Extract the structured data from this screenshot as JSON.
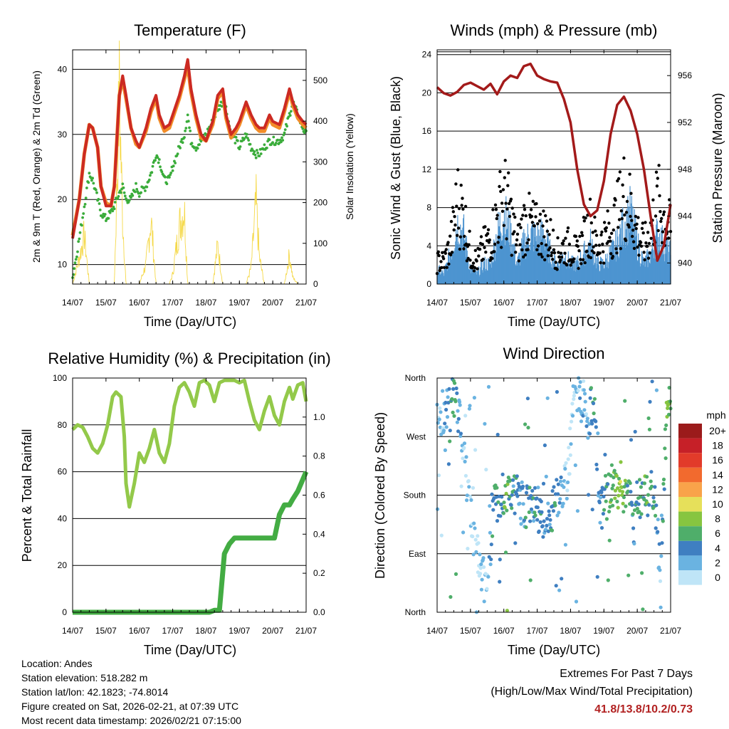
{
  "chart_data": [
    {
      "type": "line",
      "title": "Temperature (F)",
      "xlabel": "Time (Day/UTC)",
      "ylabel": "2m & 9m T (Red, Orange) & 2m Td (Green)",
      "y2label": "Solar Insolation (Yellow)",
      "categories": [
        "14/07",
        "15/07",
        "16/07",
        "17/07",
        "18/07",
        "19/07",
        "20/07",
        "21/07"
      ],
      "ylim": [
        7,
        43
      ],
      "y2lim": [
        0,
        575
      ],
      "yticks": [
        10,
        20,
        30,
        40
      ],
      "y2ticks": [
        0,
        100,
        200,
        300,
        400,
        500
      ],
      "x": [
        0,
        0.2,
        0.35,
        0.5,
        0.6,
        0.75,
        0.85,
        1.0,
        1.15,
        1.25,
        1.4,
        1.5,
        1.6,
        1.75,
        1.9,
        2.0,
        2.2,
        2.35,
        2.5,
        2.6,
        2.75,
        2.9,
        3.0,
        3.2,
        3.35,
        3.45,
        3.55,
        3.7,
        3.85,
        4.0,
        4.2,
        4.35,
        4.5,
        4.6,
        4.75,
        4.9,
        5.0,
        5.2,
        5.35,
        5.5,
        5.6,
        5.75,
        5.9,
        6.0,
        6.2,
        6.35,
        6.5,
        6.6,
        6.75,
        6.9,
        7.0
      ],
      "series": [
        {
          "name": "2m T",
          "values": [
            14,
            20,
            27,
            31.5,
            31,
            28,
            22,
            19,
            19,
            22,
            36,
            39,
            36,
            31,
            29,
            28,
            31,
            34,
            36,
            33,
            31,
            31.5,
            33,
            36,
            39,
            41.5,
            37,
            33,
            30,
            29,
            32,
            36,
            37,
            33,
            30,
            31,
            32,
            35,
            33,
            31.5,
            31,
            31,
            33,
            32,
            31.5,
            34,
            37,
            35,
            33,
            32,
            31.5
          ]
        },
        {
          "name": "9m T",
          "values": [
            14.5,
            20,
            27,
            31.5,
            31,
            28,
            22,
            19.5,
            19,
            22,
            36,
            38.5,
            35.5,
            31,
            28.5,
            28,
            30.5,
            33.5,
            35.5,
            32.5,
            30.5,
            31,
            32.5,
            35.5,
            38.5,
            40.5,
            36.5,
            32.5,
            29.5,
            29,
            31.5,
            35.5,
            36.5,
            32.5,
            29.5,
            30.5,
            31.5,
            34.5,
            32.5,
            31,
            30.5,
            30.5,
            32.5,
            31.5,
            31,
            33.5,
            36.5,
            34.5,
            32.5,
            31.5,
            31
          ]
        },
        {
          "name": "2m Td",
          "values": [
            8,
            14,
            19,
            24,
            23,
            20,
            18,
            17,
            18,
            19,
            21,
            22,
            20,
            20,
            22,
            21,
            22,
            24,
            27,
            26,
            23,
            23,
            25,
            28,
            30,
            33,
            29,
            28,
            29,
            30,
            32,
            34,
            35,
            34,
            30,
            29,
            28,
            30,
            28,
            27,
            27,
            28,
            29,
            29,
            29,
            30,
            33,
            35,
            33,
            31,
            30
          ]
        },
        {
          "name": "Solar Insolation",
          "values": [
            0,
            80,
            150,
            0,
            0,
            0,
            0,
            0,
            0,
            0,
            580,
            200,
            0,
            0,
            0,
            0,
            60,
            200,
            0,
            0,
            0,
            0,
            30,
            180,
            230,
            0,
            0,
            0,
            0,
            0,
            0,
            120,
            0,
            0,
            0,
            0,
            0,
            0,
            50,
            250,
            80,
            0,
            0,
            0,
            0,
            0,
            90,
            20,
            0,
            0,
            0
          ]
        }
      ]
    },
    {
      "type": "scatter",
      "title": "Winds (mph) & Pressure (mb)",
      "xlabel": "Time (Day/UTC)",
      "ylabel": "Sonic Wind & Gust (Blue, Black)",
      "y2label": "Station Pressure (Maroon)",
      "categories": [
        "14/07",
        "15/07",
        "16/07",
        "17/07",
        "18/07",
        "19/07",
        "20/07",
        "21/07"
      ],
      "ylim": [
        0,
        24.5
      ],
      "y2lim": [
        938.2,
        958.2
      ],
      "yticks": [
        0,
        4,
        8,
        12,
        16,
        20,
        24
      ],
      "y2ticks": [
        940,
        944,
        948,
        952,
        956
      ],
      "x": [
        0,
        0.2,
        0.4,
        0.6,
        0.8,
        1.0,
        1.2,
        1.4,
        1.6,
        1.8,
        2.0,
        2.2,
        2.4,
        2.6,
        2.8,
        3.0,
        3.2,
        3.4,
        3.6,
        3.8,
        4.0,
        4.2,
        4.4,
        4.6,
        4.8,
        5.0,
        5.2,
        5.4,
        5.6,
        5.8,
        6.0,
        6.2,
        6.4,
        6.6,
        6.8,
        7.0
      ],
      "series": [
        {
          "name": "Station Pressure",
          "values": [
            955,
            954.5,
            954.3,
            954.6,
            955.2,
            955.4,
            955.1,
            954.8,
            955.3,
            954.4,
            955.5,
            956,
            955.8,
            956.8,
            957,
            956,
            955.7,
            955.5,
            955.4,
            954,
            952,
            948,
            945,
            944,
            944.5,
            947,
            951,
            953.5,
            954.2,
            953,
            951,
            948,
            944,
            940.2,
            941.5,
            945
          ]
        },
        {
          "name": "Sonic Wind",
          "values": [
            1.5,
            1,
            3,
            6,
            5,
            1.5,
            1,
            2,
            2,
            5,
            7,
            5,
            2,
            4,
            5,
            4.5,
            5,
            3,
            2,
            3,
            2,
            2,
            3,
            4,
            2,
            2,
            3,
            4,
            6,
            7,
            4,
            2,
            3,
            5,
            4,
            3
          ]
        },
        {
          "name": "Gust",
          "values": [
            3,
            3,
            5,
            11,
            9,
            4,
            3,
            5,
            6,
            9,
            12,
            9,
            5,
            8,
            8,
            7,
            7,
            6,
            4,
            5,
            5,
            4,
            6,
            8,
            5,
            6,
            7,
            9,
            12,
            10,
            7,
            5,
            7,
            11,
            9,
            7
          ]
        }
      ]
    },
    {
      "type": "line",
      "title": "Relative Humidity (%) & Precipitation (in)",
      "xlabel": "Time (Day/UTC)",
      "ylabel": "Percent & Total Rainfall",
      "categories": [
        "14/07",
        "15/07",
        "16/07",
        "17/07",
        "18/07",
        "19/07",
        "20/07",
        "21/07"
      ],
      "ylim": [
        0,
        100
      ],
      "y2lim": [
        0,
        1.2
      ],
      "yticks": [
        0,
        20,
        40,
        60,
        80,
        100
      ],
      "y2ticks": [
        0.0,
        0.2,
        0.4,
        0.6,
        0.8,
        1.0
      ],
      "x": [
        0,
        0.15,
        0.3,
        0.45,
        0.6,
        0.75,
        0.9,
        1.05,
        1.2,
        1.3,
        1.45,
        1.55,
        1.6,
        1.7,
        1.85,
        2.0,
        2.15,
        2.3,
        2.45,
        2.6,
        2.75,
        2.9,
        3.05,
        3.2,
        3.35,
        3.5,
        3.65,
        3.8,
        3.95,
        4.1,
        4.25,
        4.4,
        4.55,
        4.7,
        4.85,
        5.0,
        5.15,
        5.3,
        5.45,
        5.6,
        5.75,
        5.9,
        6.05,
        6.2,
        6.35,
        6.5,
        6.6,
        6.75,
        6.9,
        7.0
      ],
      "series": [
        {
          "name": "Relative Humidity",
          "values": [
            78,
            80,
            79,
            75,
            70,
            68,
            72,
            80,
            92,
            94,
            92,
            75,
            55,
            45,
            55,
            68,
            64,
            70,
            78,
            68,
            64,
            72,
            88,
            96,
            98,
            94,
            88,
            98,
            99,
            97,
            90,
            98,
            99,
            99,
            99,
            98,
            99,
            90,
            82,
            78,
            86,
            92,
            84,
            80,
            90,
            96,
            91,
            97,
            98,
            90
          ]
        },
        {
          "name": "Total Precipitation",
          "values": [
            0,
            0,
            0,
            0,
            0,
            0,
            0,
            0,
            0,
            0,
            0,
            0,
            0,
            0,
            0,
            0,
            0,
            0,
            0,
            0,
            0,
            0,
            0,
            0,
            0,
            0,
            0,
            0,
            0,
            0,
            0.01,
            0.01,
            0.3,
            0.35,
            0.38,
            0.38,
            0.38,
            0.38,
            0.38,
            0.38,
            0.38,
            0.38,
            0.38,
            0.5,
            0.55,
            0.55,
            0.58,
            0.62,
            0.68,
            0.72
          ]
        }
      ]
    },
    {
      "type": "scatter",
      "title": "Wind Direction",
      "xlabel": "Time (Day/UTC)",
      "ylabel": "Direction (Colored By Speed)",
      "categories": [
        "14/07",
        "15/07",
        "16/07",
        "17/07",
        "18/07",
        "19/07",
        "20/07",
        "21/07"
      ],
      "ylim": [
        0,
        360
      ],
      "ytick_labels": [
        "North",
        "East",
        "South",
        "West",
        "North"
      ],
      "legend_title": "mph",
      "legend_labels": [
        "20+",
        "18",
        "16",
        "14",
        "12",
        "10",
        "8",
        "6",
        "4",
        "2",
        "0"
      ],
      "legend_colors": [
        "#9b1b1b",
        "#c62028",
        "#e23b2a",
        "#f26a2e",
        "#f9a34a",
        "#e6e05a",
        "#87c540",
        "#4fae6a",
        "#3f7fc1",
        "#6ab3e1",
        "#bfe5f7"
      ],
      "x": [
        0.1,
        0.3,
        0.5,
        0.7,
        0.9,
        1.1,
        1.3,
        1.5,
        1.7,
        1.9,
        2.1,
        2.3,
        2.5,
        2.7,
        2.9,
        3.1,
        3.3,
        3.5,
        3.7,
        3.9,
        4.1,
        4.3,
        4.5,
        4.7,
        4.9,
        5.1,
        5.3,
        5.5,
        5.7,
        5.9,
        6.1,
        6.3,
        6.5,
        6.7,
        6.9
      ],
      "values": [
        300,
        320,
        330,
        300,
        200,
        120,
        60,
        40,
        170,
        180,
        190,
        185,
        170,
        160,
        175,
        150,
        140,
        160,
        190,
        200,
        330,
        340,
        300,
        320,
        160,
        180,
        200,
        185,
        170,
        160,
        175,
        180,
        190,
        60,
        330
      ],
      "speeds": [
        1,
        3,
        6,
        2,
        1,
        1,
        2,
        1,
        5,
        4,
        7,
        4,
        3,
        5,
        4,
        4,
        3,
        5,
        2,
        1,
        1,
        2,
        2,
        5,
        3,
        6,
        7,
        8,
        6,
        4,
        5,
        6,
        5,
        2,
        7
      ]
    }
  ],
  "info": {
    "location": "Location: Andes",
    "elevation": "Station elevation: 518.282 m",
    "latlon": "Station lat/lon: 42.1823; -74.8014",
    "created": "Figure created on Sat, 2026-02-21, at 07:39 UTC",
    "recent": "Most recent data timestamp: 2026/02/21 07:15:00"
  },
  "extremes": {
    "line1": "Extremes For Past 7 Days",
    "line2": "(High/Low/Max Wind/Total Precipitation)",
    "values": "41.8/13.8/10.2/0.73"
  }
}
